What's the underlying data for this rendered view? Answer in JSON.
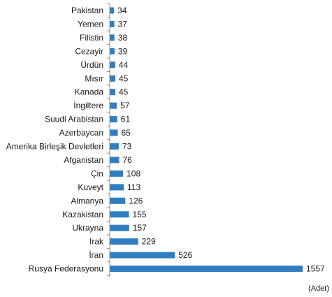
{
  "chart_data": {
    "type": "bar",
    "orientation": "horizontal",
    "categories": [
      "Pakistan",
      "Yemen",
      "Filistin",
      "Cezayir",
      "Ürdün",
      "Mısır",
      "Kanada",
      "İngiltere",
      "Suudi Arabistan",
      "Azerbaycan",
      "Amerika Birleşik Devletleri",
      "Afganistan",
      "Çin",
      "Kuveyt",
      "Almanya",
      "Kazakistan",
      "Ukrayna",
      "Irak",
      "İran",
      "Rusya Federasyonu"
    ],
    "values": [
      34,
      37,
      38,
      39,
      44,
      45,
      45,
      57,
      61,
      65,
      73,
      76,
      108,
      113,
      126,
      155,
      157,
      229,
      526,
      1557
    ],
    "data_labels": [
      "34",
      "37",
      "38",
      "39",
      "44",
      "45",
      "45",
      "57",
      "61",
      "65",
      "73",
      "76",
      "108",
      "113",
      "126",
      "155",
      "157",
      "229",
      "526",
      "1557"
    ],
    "title": "",
    "xlabel": "(Adet)",
    "ylabel": "",
    "xlim": [
      0,
      1557
    ],
    "grid": false,
    "legend": "none",
    "colors": {
      "bar": "#2e7ec1",
      "axis": "#8c8c8c",
      "text": "#1a1a1a"
    }
  }
}
